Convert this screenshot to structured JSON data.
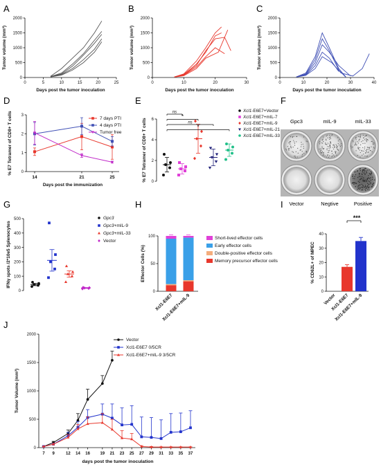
{
  "panel_letters": [
    "A",
    "B",
    "C",
    "D",
    "E",
    "F",
    "G",
    "H",
    "I",
    "J"
  ],
  "colors": {
    "A": "#555555",
    "B": "#e8372c",
    "C": "#3f4fb5",
    "d7": "#e8372c",
    "d4": "#3f4fb5",
    "tf": "#c028c8",
    "black": "#111111",
    "blue": "#2233cc",
    "red": "#e8372c",
    "purple": "#c028c8",
    "magenta": "#e040d8",
    "cyan": "#3aa0e8",
    "peach": "#f4ad7d",
    "green": "#22c08a",
    "navy": "#22227a"
  },
  "chart_data": [
    {
      "panel": "A",
      "type": "line",
      "xlabel": "Days post the tumor inoculation",
      "ylabel": "Tumor volume (mm³)",
      "xlim": [
        0,
        25
      ],
      "ylim": [
        0,
        2000
      ],
      "xticks": [
        0,
        5,
        10,
        15,
        20,
        25
      ],
      "yticks": [
        0,
        500,
        1000,
        1500,
        2000
      ],
      "series": [
        {
          "x": [
            7,
            10,
            13,
            16,
            19,
            21
          ],
          "y": [
            40,
            300,
            650,
            1000,
            1500,
            1900
          ]
        },
        {
          "x": [
            7,
            10,
            13,
            16,
            19,
            21
          ],
          "y": [
            30,
            150,
            450,
            800,
            1250,
            1550
          ]
        },
        {
          "x": [
            7,
            10,
            13,
            16,
            19,
            21
          ],
          "y": [
            30,
            120,
            380,
            750,
            1150,
            1450
          ]
        },
        {
          "x": [
            7,
            10,
            13,
            16,
            19,
            21
          ],
          "y": [
            25,
            100,
            300,
            600,
            950,
            1300
          ]
        },
        {
          "x": [
            7,
            10,
            13,
            16,
            19,
            21
          ],
          "y": [
            20,
            80,
            250,
            500,
            850,
            1200
          ]
        }
      ]
    },
    {
      "panel": "B",
      "type": "line",
      "xlabel": "Days post the tumor inoculation",
      "ylabel": "Tumor volume (mm³)",
      "xlim": [
        0,
        30
      ],
      "ylim": [
        0,
        2000
      ],
      "xticks": [
        0,
        10,
        20,
        30
      ],
      "yticks": [
        0,
        500,
        1000,
        1500,
        2000
      ],
      "series": [
        {
          "x": [
            7,
            10,
            14,
            17,
            20,
            22
          ],
          "y": [
            20,
            120,
            550,
            1000,
            1500,
            1700
          ]
        },
        {
          "x": [
            7,
            10,
            14,
            17,
            20,
            22
          ],
          "y": [
            20,
            100,
            450,
            850,
            1400,
            1500
          ]
        },
        {
          "x": [
            7,
            10,
            14,
            17,
            20,
            23,
            25
          ],
          "y": [
            20,
            90,
            400,
            900,
            1300,
            1350,
            900
          ]
        },
        {
          "x": [
            7,
            10,
            14,
            17,
            20,
            23
          ],
          "y": [
            15,
            80,
            350,
            700,
            1000,
            800
          ]
        },
        {
          "x": [
            7,
            10,
            14,
            17,
            21,
            24
          ],
          "y": [
            15,
            60,
            300,
            650,
            850,
            1600
          ]
        }
      ]
    },
    {
      "panel": "C",
      "type": "line",
      "xlabel": "Days post the tumor inoculation",
      "ylabel": "Tumor volume (mm³)",
      "xlim": [
        0,
        40
      ],
      "ylim": [
        0,
        2000
      ],
      "xticks": [
        0,
        10,
        20,
        30,
        40
      ],
      "yticks": [
        0,
        500,
        1000,
        1500,
        2000
      ],
      "series": [
        {
          "x": [
            7,
            11,
            15,
            18,
            21,
            25,
            28
          ],
          "y": [
            20,
            150,
            700,
            1500,
            1000,
            300,
            20
          ]
        },
        {
          "x": [
            7,
            11,
            15,
            18,
            21,
            25,
            28
          ],
          "y": [
            20,
            120,
            600,
            1300,
            900,
            250,
            10
          ]
        },
        {
          "x": [
            7,
            11,
            15,
            18,
            21,
            25,
            30
          ],
          "y": [
            20,
            100,
            500,
            1100,
            850,
            400,
            50
          ]
        },
        {
          "x": [
            7,
            11,
            15,
            18,
            21,
            25
          ],
          "y": [
            15,
            80,
            400,
            850,
            650,
            200
          ]
        },
        {
          "x": [
            7,
            11,
            15,
            18,
            22,
            26,
            31,
            35,
            38
          ],
          "y": [
            15,
            70,
            300,
            700,
            500,
            150,
            50,
            300,
            800
          ]
        }
      ]
    },
    {
      "panel": "D",
      "type": "line",
      "xlabel": "Days post the immunization",
      "ylabel": "% E7 Tetramer of CD8+ T cells",
      "categories": [
        "14",
        "21",
        "25"
      ],
      "ylim": [
        0,
        3
      ],
      "yticks": [
        0,
        1,
        2,
        3
      ],
      "legend_position": "top-right",
      "series": [
        {
          "name": "7 days PTI",
          "values": [
            1.05,
            1.85,
            1.3
          ],
          "errors": [
            0.2,
            0.7,
            0.65
          ]
        },
        {
          "name": "4 days PTI",
          "values": [
            2.0,
            2.4,
            1.6
          ],
          "errors": [
            0.6,
            0.45,
            0.25
          ]
        },
        {
          "name": "Tumor free",
          "values": [
            2.05,
            0.85,
            0.5
          ],
          "errors": [
            0.6,
            0.1,
            0.05
          ]
        }
      ]
    },
    {
      "panel": "E",
      "type": "scatter",
      "ylabel": "% E7 Tetramer of CD8+ T cells",
      "ylim": [
        0,
        6
      ],
      "yticks": [
        0,
        2,
        4,
        6
      ],
      "legend_position": "right",
      "groups": [
        {
          "gene": "Xcl1",
          "rest": "-E6E7+Vector",
          "mean": 1.6,
          "sd": 0.7,
          "values": [
            0.6,
            1.3,
            1.6,
            1.8,
            2.6
          ]
        },
        {
          "gene": "Xcl1",
          "rest": "-E6E7+mIL-7",
          "mean": 1.2,
          "sd": 0.5,
          "values": [
            0.6,
            1.0,
            1.2,
            1.4,
            1.8
          ]
        },
        {
          "gene": "Xcl1",
          "rest": "-E6E7+mIL-9",
          "mean": 4.1,
          "sd": 1.4,
          "values": [
            2.2,
            3.4,
            4.1,
            4.8,
            5.8
          ]
        },
        {
          "gene": "Xcl1",
          "rest": "-E6E7+mIL-21",
          "mean": 2.3,
          "sd": 0.8,
          "values": [
            1.3,
            1.9,
            2.3,
            2.6,
            3.2
          ]
        },
        {
          "gene": "Xcl1",
          "rest": "-E6E7+mIL-33",
          "mean": 3.0,
          "sd": 0.6,
          "values": [
            2.1,
            2.7,
            3.0,
            3.3,
            3.6
          ]
        }
      ],
      "significance": [
        {
          "from": 0,
          "to": 1,
          "label": "ns"
        },
        {
          "from": 0,
          "to": 2,
          "label": "*"
        },
        {
          "from": 0,
          "to": 3,
          "label": "ns"
        },
        {
          "from": 0,
          "to": 4,
          "label": "*"
        }
      ]
    },
    {
      "panel": "G",
      "type": "scatter",
      "ylabel": "IFNγ spots /2*10e5 Splenocytes",
      "ylim": [
        0,
        500
      ],
      "yticks": [
        0,
        100,
        200,
        300,
        400,
        500
      ],
      "legend_position": "top-right",
      "groups": [
        {
          "name": "Gpc3",
          "italic": "Gpc3",
          "rest": "",
          "mean": 42,
          "sem": 8,
          "values": [
            28,
            36,
            42,
            50,
            58
          ]
        },
        {
          "name": "Gpc3+mIL-9",
          "italic": "Gpc3",
          "rest": "+mIL-9",
          "mean": 210,
          "sem": 75,
          "values": [
            90,
            150,
            200,
            250,
            470
          ]
        },
        {
          "name": "Gpc3+mIL-33",
          "italic": "Gpc3",
          "rest": "+mIL-33",
          "mean": 115,
          "sem": 22,
          "values": [
            60,
            100,
            115,
            130,
            170
          ]
        },
        {
          "name": "Vector",
          "italic": "",
          "rest": "Vector",
          "mean": 18,
          "sem": 3,
          "values": [
            12,
            15,
            18,
            20,
            22
          ]
        }
      ]
    },
    {
      "panel": "H",
      "type": "bar",
      "ylabel": "Effector Cells (%)",
      "ylim": [
        0,
        100
      ],
      "yticks": [
        0,
        50,
        100
      ],
      "categories": [
        "Xcl1-E6E7",
        "Xcl1-E6E7+mIL-9"
      ],
      "legend_position": "right",
      "series": [
        {
          "name": "Memory precursor effector cells",
          "values": [
            11,
            18
          ]
        },
        {
          "name": "Double-positive effector cells",
          "values": [
            2,
            2
          ]
        },
        {
          "name": "Early effector cells",
          "values": [
            82,
            77
          ]
        },
        {
          "name": "Short-lived effector cells",
          "values": [
            5,
            3
          ]
        }
      ]
    },
    {
      "panel": "I",
      "type": "bar",
      "ylabel": "% CD62L+ of MPEC",
      "ylim": [
        0,
        40
      ],
      "yticks": [
        0,
        10,
        20,
        30,
        40
      ],
      "categories": [
        "Vector",
        "Xcl1-E6E7",
        "Xcl1-E6E7+mIL-9"
      ],
      "values": [
        0,
        17,
        35
      ],
      "errors": [
        0,
        1.5,
        2.5
      ],
      "significance": [
        {
          "from": 1,
          "to": 2,
          "label": "***"
        }
      ]
    },
    {
      "panel": "J",
      "type": "line",
      "xlabel": "days post the tumor inoculation",
      "ylabel": "Tumor Volume (mm³)",
      "xticks": [
        7,
        9,
        12,
        14,
        16,
        19,
        21,
        23,
        25,
        27,
        29,
        31,
        33,
        35,
        37
      ],
      "ylim": [
        0,
        2000
      ],
      "yticks": [
        0,
        500,
        1000,
        1500,
        2000
      ],
      "legend_position": "top-right",
      "series": [
        {
          "name": "Vector",
          "x": [
            7,
            9,
            12,
            14,
            16,
            19,
            21
          ],
          "values": [
            20,
            90,
            250,
            480,
            850,
            1130,
            1540
          ],
          "errors": [
            5,
            20,
            60,
            120,
            180,
            140,
            160
          ]
        },
        {
          "name": "Xcl1-E6E7 0/5CR",
          "x": [
            7,
            9,
            12,
            14,
            16,
            19,
            21,
            23,
            25,
            27,
            29,
            31,
            33,
            35,
            37
          ],
          "values": [
            20,
            60,
            210,
            360,
            530,
            590,
            520,
            400,
            410,
            190,
            180,
            160,
            270,
            280,
            350
          ],
          "errors": [
            5,
            20,
            60,
            100,
            140,
            180,
            250,
            300,
            330,
            350,
            350,
            330,
            330,
            330,
            300
          ]
        },
        {
          "name": "Xcl1-E6E7+mIL-9 3/5CR",
          "x": [
            7,
            9,
            12,
            14,
            16,
            19,
            21,
            23,
            25,
            27,
            29,
            31,
            33,
            35,
            37
          ],
          "values": [
            20,
            60,
            180,
            330,
            420,
            440,
            320,
            170,
            150,
            20,
            10,
            10,
            10,
            10,
            10
          ],
          "errors": [
            5,
            15,
            50,
            80,
            120,
            160,
            180,
            130,
            100,
            15,
            10,
            5,
            5,
            5,
            5
          ]
        }
      ]
    }
  ],
  "panel_f": {
    "column_labels": [
      "Gpc3",
      "mIL-9",
      "mIL-33"
    ],
    "row_labels": [
      "Vector",
      "Negtive",
      "Positive"
    ]
  }
}
